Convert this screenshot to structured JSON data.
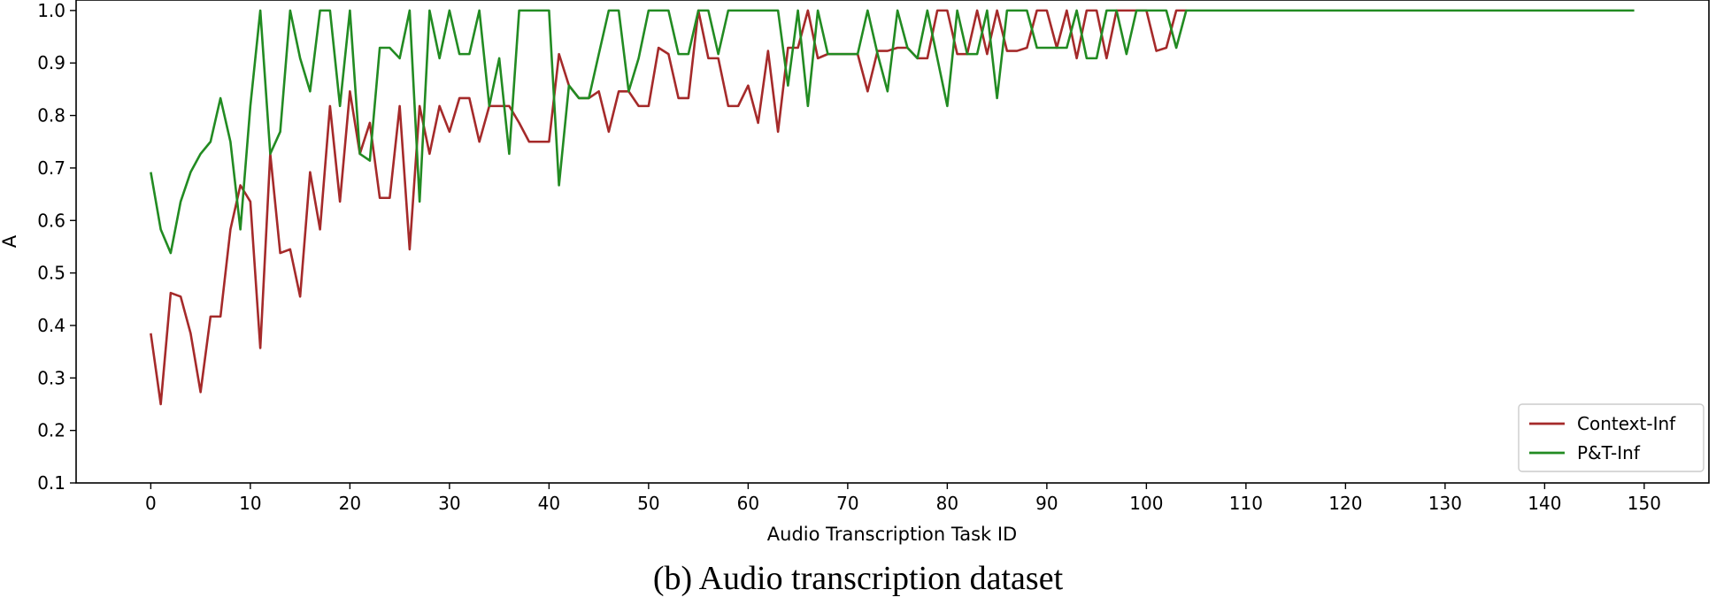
{
  "caption": "(b)  Audio transcription dataset",
  "chart_data": {
    "type": "line",
    "xlabel": "Audio Transcription Task ID",
    "ylabel": "A",
    "xlim": [
      -7.5,
      156.5
    ],
    "ylim": [
      0.1,
      1.02
    ],
    "xticks": [
      0,
      10,
      20,
      30,
      40,
      50,
      60,
      70,
      80,
      90,
      100,
      110,
      120,
      130,
      140,
      150
    ],
    "yticks": [
      0.1,
      0.2,
      0.3,
      0.4,
      0.5,
      0.6,
      0.7,
      0.8,
      0.9,
      1.0
    ],
    "ytick_labels": [
      "0.1",
      "0.2",
      "0.3",
      "0.4",
      "0.5",
      "0.6",
      "0.7",
      "0.8",
      "0.9",
      "1.0"
    ],
    "grid": false,
    "legend_position": "bottom-right",
    "series": [
      {
        "name": "Context-Inf",
        "color": "#a52a2a",
        "x_start": 0,
        "values": [
          0.385,
          0.25,
          0.462,
          0.455,
          0.385,
          0.273,
          0.417,
          0.417,
          0.583,
          0.667,
          0.636,
          0.357,
          0.727,
          0.538,
          0.545,
          0.455,
          0.692,
          0.583,
          0.818,
          0.636,
          0.846,
          0.727,
          0.786,
          0.643,
          0.643,
          0.818,
          0.545,
          0.818,
          0.727,
          0.818,
          0.769,
          0.833,
          0.833,
          0.75,
          0.818,
          0.818,
          0.818,
          0.786,
          0.75,
          0.75,
          0.75,
          0.917,
          0.857,
          0.833,
          0.833,
          0.846,
          0.769,
          0.846,
          0.846,
          0.818,
          0.818,
          0.929,
          0.917,
          0.833,
          0.833,
          1.0,
          0.909,
          0.909,
          0.818,
          0.818,
          0.857,
          0.786,
          0.923,
          0.769,
          0.929,
          0.929,
          1.0,
          0.909,
          0.917,
          0.917,
          0.917,
          0.917,
          0.846,
          0.923,
          0.923,
          0.929,
          0.929,
          0.909,
          0.909,
          1.0,
          1.0,
          0.917,
          0.917,
          1.0,
          0.917,
          1.0,
          0.923,
          0.923,
          0.929,
          1.0,
          1.0,
          0.929,
          1.0,
          0.909,
          1.0,
          1.0,
          0.909,
          1.0,
          1.0,
          1.0,
          1.0,
          0.923,
          0.929,
          1.0,
          1.0
        ]
      },
      {
        "name": "P&T-Inf",
        "color": "#228b22",
        "x_start": 0,
        "values": [
          0.692,
          0.583,
          0.538,
          0.636,
          0.692,
          0.727,
          0.75,
          0.833,
          0.75,
          0.583,
          0.818,
          1.0,
          0.727,
          0.769,
          1.0,
          0.909,
          0.846,
          1.0,
          1.0,
          0.818,
          1.0,
          0.727,
          0.714,
          0.929,
          0.929,
          0.909,
          1.0,
          0.636,
          1.0,
          0.909,
          1.0,
          0.917,
          0.917,
          1.0,
          0.818,
          0.909,
          0.727,
          1.0,
          1.0,
          1.0,
          1.0,
          0.667,
          0.857,
          0.833,
          0.833,
          0.917,
          1.0,
          1.0,
          0.846,
          0.909,
          1.0,
          1.0,
          1.0,
          0.917,
          0.917,
          1.0,
          1.0,
          0.917,
          1.0,
          1.0,
          1.0,
          1.0,
          1.0,
          1.0,
          0.857,
          1.0,
          0.818,
          1.0,
          0.917,
          0.917,
          0.917,
          0.917,
          1.0,
          0.917,
          0.846,
          1.0,
          0.929,
          0.909,
          1.0,
          0.909,
          0.818,
          1.0,
          0.917,
          0.917,
          1.0,
          0.833,
          1.0,
          1.0,
          1.0,
          0.929,
          0.929,
          0.929,
          0.929,
          1.0,
          0.909,
          0.909,
          1.0,
          1.0,
          0.917,
          1.0,
          1.0,
          1.0,
          1.0,
          0.929,
          1.0,
          1.0,
          1.0,
          1.0,
          1.0,
          1.0,
          1.0,
          1.0,
          1.0,
          1.0,
          1.0,
          1.0,
          1.0,
          1.0,
          1.0,
          1.0,
          1.0,
          1.0,
          1.0,
          1.0,
          1.0,
          1.0,
          1.0,
          1.0,
          1.0,
          1.0,
          1.0,
          1.0,
          1.0,
          1.0,
          1.0,
          1.0,
          1.0,
          1.0,
          1.0,
          1.0,
          1.0,
          1.0,
          1.0,
          1.0,
          1.0,
          1.0,
          1.0,
          1.0,
          1.0,
          1.0
        ]
      }
    ]
  }
}
